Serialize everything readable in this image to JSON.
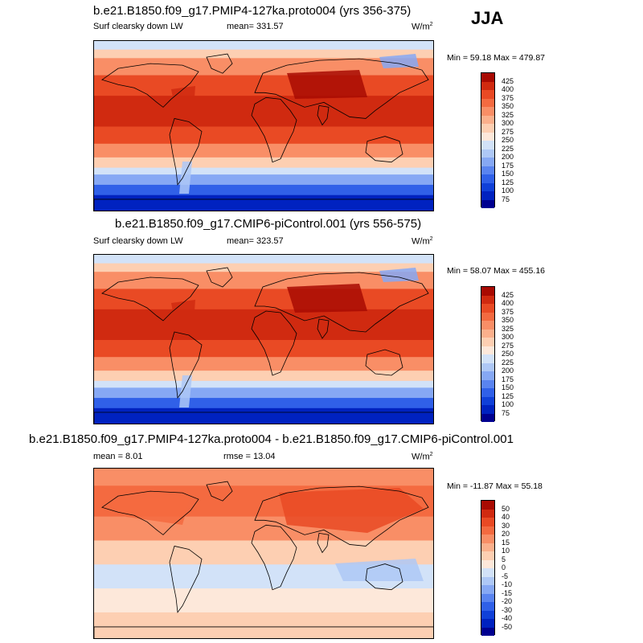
{
  "season": "JJA",
  "colors": {
    "abs": [
      "#000090",
      "#0022c0",
      "#1040d8",
      "#3060e8",
      "#5a84f0",
      "#86a8f4",
      "#aec8f6",
      "#d2e2f8",
      "#fde8da",
      "#fdcfb2",
      "#fbb08c",
      "#f98e66",
      "#f46a40",
      "#e94a24",
      "#d02a10",
      "#a80a02"
    ],
    "diff": [
      "#000090",
      "#0022c0",
      "#1040d8",
      "#3060e8",
      "#5a84f0",
      "#86a8f4",
      "#aec8f6",
      "#d2e2f8",
      "#fde8da",
      "#fdcfb2",
      "#fbb08c",
      "#f98e66",
      "#f46a40",
      "#e94a24",
      "#d02a10",
      "#a80a02"
    ]
  },
  "panels": [
    {
      "title": "b.e21.B1850.f09_g17.PMIP4-127ka.proto004 (yrs 356-375)",
      "left_label": "Surf clearsky down LW",
      "mean": "mean= 331.57",
      "units": "W/m",
      "units_sup": "2",
      "minmax": "Min =  59.18 Max = 479.87",
      "cbar_labels": [
        "425",
        "400",
        "375",
        "350",
        "325",
        "300",
        "275",
        "250",
        "225",
        "200",
        "175",
        "150",
        "125",
        "100",
        "75"
      ],
      "chart_data": {
        "type": "heatmap",
        "title": "b.e21.B1850.f09_g17.PMIP4-127ka.proto004 (yrs 356-375)",
        "variable": "Surf clearsky down LW",
        "units": "W/m2",
        "mean": 331.57,
        "min": 59.18,
        "max": 479.87,
        "levels": [
          75,
          100,
          125,
          150,
          175,
          200,
          225,
          250,
          275,
          300,
          325,
          350,
          375,
          400,
          425
        ]
      }
    },
    {
      "title": "b.e21.B1850.f09_g17.CMIP6-piControl.001 (yrs 556-575)",
      "left_label": "Surf clearsky down LW",
      "mean": "mean= 323.57",
      "units": "W/m",
      "units_sup": "2",
      "minmax": "Min =  58.07 Max = 455.16",
      "cbar_labels": [
        "425",
        "400",
        "375",
        "350",
        "325",
        "300",
        "275",
        "250",
        "225",
        "200",
        "175",
        "150",
        "125",
        "100",
        "75"
      ],
      "chart_data": {
        "type": "heatmap",
        "title": "b.e21.B1850.f09_g17.CMIP6-piControl.001 (yrs 556-575)",
        "variable": "Surf clearsky down LW",
        "units": "W/m2",
        "mean": 323.57,
        "min": 58.07,
        "max": 455.16,
        "levels": [
          75,
          100,
          125,
          150,
          175,
          200,
          225,
          250,
          275,
          300,
          325,
          350,
          375,
          400,
          425
        ]
      }
    },
    {
      "title": "b.e21.B1850.f09_g17.PMIP4-127ka.proto004 - b.e21.B1850.f09_g17.CMIP6-piControl.001",
      "left_label": "mean =   8.01",
      "mean": "rmse =   13.04",
      "units": "W/m",
      "units_sup": "2",
      "minmax": "Min = -11.87 Max =  55.18",
      "cbar_labels": [
        "50",
        "40",
        "30",
        "20",
        "15",
        "10",
        "5",
        "0",
        "-5",
        "-10",
        "-15",
        "-20",
        "-30",
        "-40",
        "-50"
      ],
      "chart_data": {
        "type": "heatmap",
        "title": "b.e21.B1850.f09_g17.PMIP4-127ka.proto004 - b.e21.B1850.f09_g17.CMIP6-piControl.001",
        "variable": "difference",
        "units": "W/m2",
        "mean": 8.01,
        "rmse": 13.04,
        "min": -11.87,
        "max": 55.18,
        "levels": [
          -50,
          -40,
          -30,
          -20,
          -15,
          -10,
          -5,
          0,
          5,
          10,
          15,
          20,
          30,
          40,
          50
        ]
      }
    }
  ]
}
